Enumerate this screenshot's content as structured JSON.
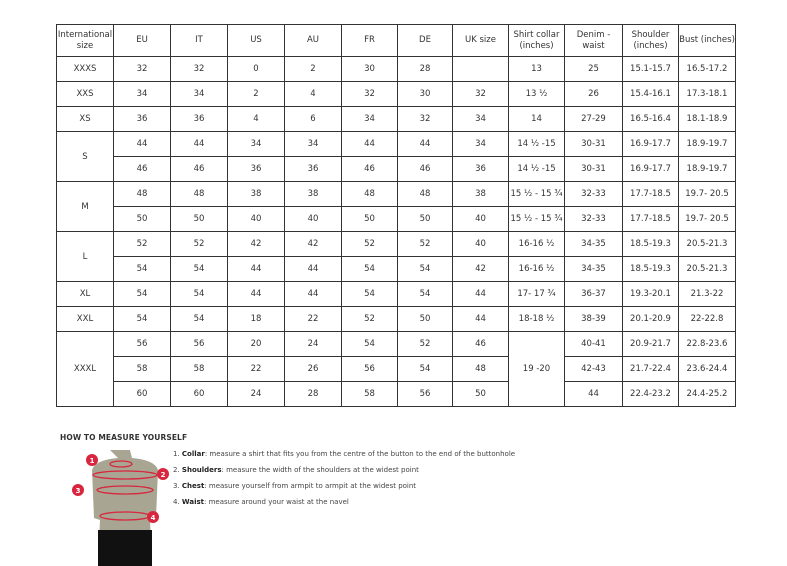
{
  "headers": [
    "International size",
    "EU",
    "IT",
    "US",
    "AU",
    "FR",
    "DE",
    "UK size",
    "Shirt collar (inches)",
    "Denim - waist",
    "Shoulder (inches)",
    "Bust (inches)"
  ],
  "groups": [
    {
      "size": "XXXS",
      "rows": [
        [
          "32",
          "32",
          "0",
          "2",
          "30",
          "28",
          "",
          "13",
          "25",
          "15.1-15.7",
          "16.5-17.2"
        ]
      ]
    },
    {
      "size": "XXS",
      "rows": [
        [
          "34",
          "34",
          "2",
          "4",
          "32",
          "30",
          "32",
          "13 ½",
          "26",
          "15.4-16.1",
          "17.3-18.1"
        ]
      ]
    },
    {
      "size": "XS",
      "rows": [
        [
          "36",
          "36",
          "4",
          "6",
          "34",
          "32",
          "34",
          "14",
          "27-29",
          "16.5-16.4",
          "18.1-18.9"
        ]
      ]
    },
    {
      "size": "S",
      "rows": [
        [
          "44",
          "44",
          "34",
          "34",
          "44",
          "44",
          "34",
          "14 ½ -15",
          "30-31",
          "16.9-17.7",
          "18.9-19.7"
        ],
        [
          "46",
          "46",
          "36",
          "36",
          "46",
          "46",
          "36",
          "14 ½ -15",
          "30-31",
          "16.9-17.7",
          "18.9-19.7"
        ]
      ]
    },
    {
      "size": "M",
      "rows": [
        [
          "48",
          "48",
          "38",
          "38",
          "48",
          "48",
          "38",
          "15 ½ - 15 ¾",
          "32-33",
          "17.7-18.5",
          "19.7- 20.5"
        ],
        [
          "50",
          "50",
          "40",
          "40",
          "50",
          "50",
          "40",
          "15 ½ - 15 ¾",
          "32-33",
          "17.7-18.5",
          "19.7- 20.5"
        ]
      ]
    },
    {
      "size": "L",
      "rows": [
        [
          "52",
          "52",
          "42",
          "42",
          "52",
          "52",
          "40",
          "16-16 ½",
          "34-35",
          "18.5-19.3",
          "20.5-21.3"
        ],
        [
          "54",
          "54",
          "44",
          "44",
          "54",
          "54",
          "42",
          "16-16 ½",
          "34-35",
          "18.5-19.3",
          "20.5-21.3"
        ]
      ]
    },
    {
      "size": "XL",
      "rows": [
        [
          "54",
          "54",
          "44",
          "44",
          "54",
          "54",
          "44",
          "17- 17 ¾",
          "36-37",
          "19.3-20.1",
          "21.3-22"
        ]
      ]
    },
    {
      "size": "XXL",
      "rows": [
        [
          "54",
          "54",
          "18",
          "22",
          "52",
          "50",
          "44",
          "18-18 ½",
          "38-39",
          "20.1-20.9",
          "22-22.8"
        ]
      ]
    },
    {
      "size": "XXXL",
      "collar": "19 -20",
      "rows": [
        [
          "56",
          "56",
          "20",
          "24",
          "54",
          "52",
          "46",
          null,
          "40-41",
          "20.9-21.7",
          "22.8-23.6"
        ],
        [
          "58",
          "58",
          "22",
          "26",
          "56",
          "54",
          "48",
          null,
          "42-43",
          "21.7-22.4",
          "23.6-24.4"
        ],
        [
          "60",
          "60",
          "24",
          "28",
          "58",
          "56",
          "50",
          null,
          "44",
          "22.4-23.2",
          "24.4-25.2"
        ]
      ]
    }
  ],
  "guide": {
    "title": "HOW TO MEASURE YOURSELF",
    "steps": [
      {
        "num": "1.",
        "term": "Collar",
        "text": ": measure a shirt that fits you from the centre of the button to the end of the buttonhole"
      },
      {
        "num": "2.",
        "term": "Shoulders",
        "text": ": measure the width of the shoulders at the widest point"
      },
      {
        "num": "3.",
        "term": "Chest",
        "text": ": measure yourself from armpit to armpit at the widest point"
      },
      {
        "num": "4.",
        "term": "Waist",
        "text": ": measure around your waist at the navel"
      }
    ],
    "markers": [
      "1",
      "2",
      "3",
      "4"
    ],
    "accent": "#d7263d",
    "body_color": "#a8a592"
  }
}
